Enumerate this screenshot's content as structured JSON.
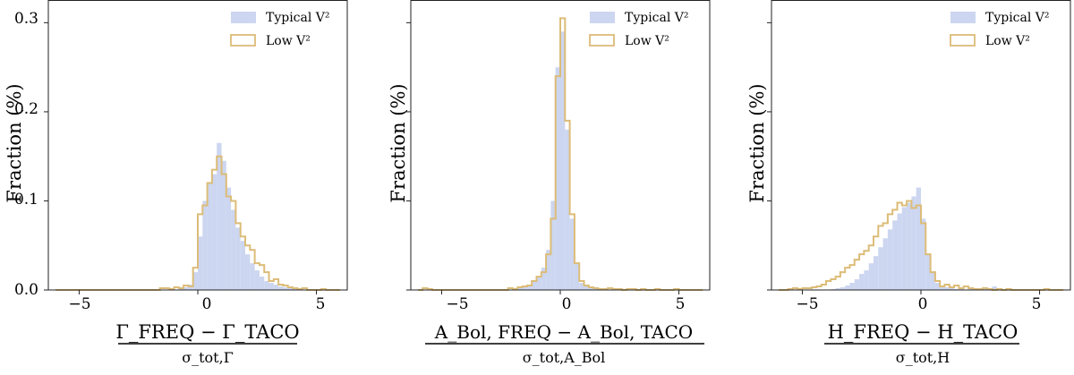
{
  "colors": {
    "typical": "#ccd6f0",
    "low": "#dcbc78",
    "frame": "#222222"
  },
  "chart_data": [
    {
      "type": "histogram",
      "panel": "left",
      "ylabel": "Fraction (%)",
      "xlabel_numerator": "Γ_FREQ − Γ_TACO",
      "xlabel_denominator": "σ_tot,Γ",
      "xlim": [
        -6.3,
        6.3
      ],
      "ylim": [
        0,
        0.325
      ],
      "xticks": [
        "−5",
        "0",
        "5"
      ],
      "xtick_values": [
        -5,
        0,
        5
      ],
      "yticks": [
        "0.0",
        "0.1",
        "0.2",
        "0.3"
      ],
      "ytick_values": [
        0,
        0.1,
        0.2,
        0.3
      ],
      "legend_position": "top-right",
      "bin_edges": [
        -6.0,
        -5.8,
        -5.6,
        -5.4,
        -5.2,
        -5.0,
        -4.8,
        -4.6,
        -4.4,
        -4.2,
        -4.0,
        -3.8,
        -3.6,
        -3.4,
        -3.2,
        -3.0,
        -2.8,
        -2.6,
        -2.4,
        -2.2,
        -2.0,
        -1.8,
        -1.6,
        -1.4,
        -1.2,
        -1.0,
        -0.8,
        -0.6,
        -0.4,
        -0.2,
        0.0,
        0.2,
        0.4,
        0.6,
        0.8,
        1.0,
        1.2,
        1.4,
        1.6,
        1.8,
        2.0,
        2.2,
        2.4,
        2.6,
        2.8,
        3.0,
        3.2,
        3.4,
        3.6,
        3.8,
        4.0,
        4.2,
        4.4,
        4.6,
        4.8,
        5.0,
        5.2,
        5.4,
        5.6,
        5.8,
        6.0
      ],
      "series": [
        {
          "name": "Typical V²",
          "style": "filled",
          "values": [
            0,
            0,
            0,
            0,
            0,
            0,
            0,
            0,
            0,
            0,
            0,
            0,
            0,
            0,
            0,
            0,
            0,
            0,
            0,
            0,
            0,
            0,
            0,
            0,
            0,
            0,
            0.001,
            0.003,
            0.006,
            0.02,
            0.06,
            0.1,
            0.12,
            0.13,
            0.165,
            0.145,
            0.115,
            0.09,
            0.07,
            0.055,
            0.04,
            0.03,
            0.022,
            0.015,
            0.01,
            0.008,
            0.006,
            0.004,
            0.003,
            0.002,
            0.001,
            0.001,
            0,
            0,
            0,
            0,
            0,
            0,
            0,
            0
          ]
        },
        {
          "name": "Low V²",
          "style": "step",
          "values": [
            0,
            0,
            0,
            0,
            0,
            0,
            0,
            0,
            0,
            0,
            0,
            0,
            0,
            0,
            0,
            0,
            0,
            0,
            0,
            0,
            0,
            0,
            0.002,
            0.002,
            0.001,
            0.003,
            0.002,
            0.005,
            0.004,
            0.025,
            0.085,
            0.095,
            0.12,
            0.135,
            0.15,
            0.13,
            0.105,
            0.1,
            0.075,
            0.06,
            0.05,
            0.045,
            0.03,
            0.028,
            0.02,
            0.01,
            0.012,
            0.006,
            0.005,
            0.003,
            0.002,
            0.001,
            0.002,
            0,
            0,
            0,
            0.001,
            0,
            0,
            0
          ]
        }
      ]
    },
    {
      "type": "histogram",
      "panel": "center",
      "ylabel": "Fraction (%)",
      "xlabel_numerator": "A_Bol, FREQ − A_Bol, TACO",
      "xlabel_denominator": "σ_tot,A_Bol",
      "xlim": [
        -6.3,
        6.3
      ],
      "ylim": [
        0,
        0.325
      ],
      "xticks": [
        "−5",
        "0",
        "5"
      ],
      "xtick_values": [
        -5,
        0,
        5
      ],
      "yticks": [
        "",
        "",
        "",
        ""
      ],
      "ytick_values": [
        0,
        0.1,
        0.2,
        0.3
      ],
      "legend_position": "top-right",
      "bin_edges": [
        -6.0,
        -5.8,
        -5.6,
        -5.4,
        -5.2,
        -5.0,
        -4.8,
        -4.6,
        -4.4,
        -4.2,
        -4.0,
        -3.8,
        -3.6,
        -3.4,
        -3.2,
        -3.0,
        -2.8,
        -2.6,
        -2.4,
        -2.2,
        -2.0,
        -1.8,
        -1.6,
        -1.4,
        -1.2,
        -1.0,
        -0.8,
        -0.6,
        -0.4,
        -0.2,
        0.0,
        0.2,
        0.4,
        0.6,
        0.8,
        1.0,
        1.2,
        1.4,
        1.6,
        1.8,
        2.0,
        2.2,
        2.4,
        2.6,
        2.8,
        3.0,
        3.2,
        3.4,
        3.6,
        3.8,
        4.0,
        4.2,
        4.4,
        4.6,
        4.8,
        5.0,
        5.2,
        5.4,
        5.6,
        5.8,
        6.0
      ],
      "series": [
        {
          "name": "Typical V²",
          "style": "filled",
          "values": [
            0,
            0,
            0,
            0,
            0,
            0,
            0,
            0,
            0,
            0,
            0,
            0,
            0,
            0,
            0,
            0,
            0,
            0,
            0,
            0,
            0.001,
            0.002,
            0.003,
            0.006,
            0.01,
            0.015,
            0.025,
            0.045,
            0.1,
            0.25,
            0.29,
            0.18,
            0.08,
            0.03,
            0.008,
            0.004,
            0.002,
            0.001,
            0,
            0,
            0,
            0,
            0,
            0,
            0,
            0,
            0,
            0,
            0,
            0,
            0,
            0,
            0,
            0,
            0,
            0,
            0,
            0,
            0,
            0
          ]
        },
        {
          "name": "Low V²",
          "style": "step",
          "values": [
            0,
            0.002,
            0.001,
            0,
            0,
            0,
            0,
            0,
            0,
            0,
            0,
            0,
            0,
            0,
            0,
            0,
            0,
            0,
            0,
            0.002,
            0.001,
            0.003,
            0.004,
            0.005,
            0.01,
            0.015,
            0.02,
            0.04,
            0.08,
            0.24,
            0.305,
            0.19,
            0.085,
            0.03,
            0.01,
            0.005,
            0.003,
            0.002,
            0.001,
            0.001,
            0.002,
            0.001,
            0.001,
            0,
            0.001,
            0.001,
            0,
            0.001,
            0,
            0,
            0.001,
            0,
            0,
            0,
            0.001,
            0,
            0,
            0,
            0,
            0
          ]
        }
      ]
    },
    {
      "type": "histogram",
      "panel": "right",
      "ylabel": "Fraction (%)",
      "xlabel_numerator": "H_FREQ − H_TACO",
      "xlabel_denominator": "σ_tot,H",
      "xlim": [
        -6.3,
        6.3
      ],
      "ylim": [
        0,
        0.325
      ],
      "xticks": [
        "−5",
        "0",
        "5"
      ],
      "xtick_values": [
        -5,
        0,
        5
      ],
      "yticks": [
        "",
        "",
        "",
        ""
      ],
      "ytick_values": [
        0,
        0.1,
        0.2,
        0.3
      ],
      "legend_position": "top-right",
      "bin_edges": [
        -6.0,
        -5.8,
        -5.6,
        -5.4,
        -5.2,
        -5.0,
        -4.8,
        -4.6,
        -4.4,
        -4.2,
        -4.0,
        -3.8,
        -3.6,
        -3.4,
        -3.2,
        -3.0,
        -2.8,
        -2.6,
        -2.4,
        -2.2,
        -2.0,
        -1.8,
        -1.6,
        -1.4,
        -1.2,
        -1.0,
        -0.8,
        -0.6,
        -0.4,
        -0.2,
        0.0,
        0.2,
        0.4,
        0.6,
        0.8,
        1.0,
        1.2,
        1.4,
        1.6,
        1.8,
        2.0,
        2.2,
        2.4,
        2.6,
        2.8,
        3.0,
        3.2,
        3.4,
        3.6,
        3.8,
        4.0,
        4.2,
        4.4,
        4.6,
        4.8,
        5.0,
        5.2,
        5.4,
        5.6,
        5.8,
        6.0
      ],
      "series": [
        {
          "name": "Typical V²",
          "style": "filled",
          "values": [
            0,
            0,
            0,
            0,
            0,
            0,
            0,
            0,
            0,
            0,
            0,
            0.001,
            0.002,
            0.003,
            0.005,
            0.008,
            0.012,
            0.018,
            0.022,
            0.03,
            0.038,
            0.048,
            0.058,
            0.068,
            0.078,
            0.086,
            0.093,
            0.098,
            0.105,
            0.115,
            0.08,
            0.04,
            0.02,
            0.008,
            0.004,
            0.003,
            0.002,
            0.001,
            0.001,
            0,
            0.001,
            0,
            0.001,
            0.001,
            0,
            0.004,
            0,
            0,
            0,
            0,
            0,
            0,
            0,
            0,
            0,
            0,
            0,
            0,
            0,
            0
          ]
        },
        {
          "name": "Low V²",
          "style": "step",
          "values": [
            0,
            0,
            0.001,
            0.002,
            0.001,
            0.002,
            0.002,
            0.003,
            0.004,
            0.006,
            0.01,
            0.012,
            0.015,
            0.02,
            0.025,
            0.028,
            0.034,
            0.04,
            0.044,
            0.05,
            0.06,
            0.072,
            0.075,
            0.085,
            0.09,
            0.098,
            0.095,
            0.1,
            0.092,
            0.095,
            0.075,
            0.04,
            0.02,
            0.01,
            0.004,
            0.006,
            0.003,
            0.005,
            0.002,
            0.004,
            0.002,
            0.001,
            0.001,
            0.002,
            0.001,
            0,
            0.001,
            0,
            0.001,
            0,
            0,
            0,
            0,
            0,
            0,
            0,
            0.001,
            0,
            0,
            0
          ]
        }
      ]
    }
  ]
}
